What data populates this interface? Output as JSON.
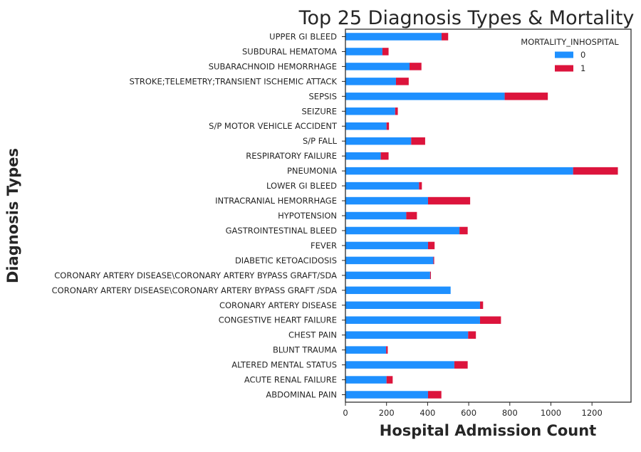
{
  "chart_data": {
    "type": "bar",
    "orientation": "horizontal",
    "stacked": true,
    "title": "Top 25 Diagnosis Types & Mortality",
    "xlabel": "Hospital Admission Count",
    "ylabel": "Diagnosis Types",
    "xlim": [
      0,
      1390
    ],
    "xticks": [
      0,
      200,
      400,
      600,
      800,
      1000,
      1200
    ],
    "grid": false,
    "legend": {
      "title": "MORTALITY_INHOSPITAL",
      "position": "top-right"
    },
    "categories": [
      "UPPER GI BLEED",
      "SUBDURAL HEMATOMA",
      "SUBARACHNOID HEMORRHAGE",
      "STROKE;TELEMETRY;TRANSIENT ISCHEMIC ATTACK",
      "SEPSIS",
      "SEIZURE",
      "S/P MOTOR VEHICLE ACCIDENT",
      "S/P FALL",
      "RESPIRATORY FAILURE",
      "PNEUMONIA",
      "LOWER GI BLEED",
      "INTRACRANIAL HEMORRHAGE",
      "HYPOTENSION",
      "GASTROINTESTINAL BLEED",
      "FEVER",
      "DIABETIC KETOACIDOSIS",
      "CORONARY ARTERY DISEASE\\CORONARY ARTERY BYPASS GRAFT/SDA",
      "CORONARY ARTERY DISEASE\\CORONARY ARTERY BYPASS GRAFT /SDA",
      "CORONARY ARTERY DISEASE",
      "CONGESTIVE HEART FAILURE",
      "CHEST PAIN",
      "BLUNT TRAUMA",
      "ALTERED MENTAL STATUS",
      "ACUTE RENAL FAILURE",
      "ABDOMINAL PAIN"
    ],
    "series": [
      {
        "name": "0",
        "color": "#1e90ff",
        "values": [
          468,
          180,
          312,
          246,
          775,
          242,
          200,
          320,
          172,
          1108,
          358,
          402,
          296,
          555,
          402,
          428,
          412,
          512,
          655,
          655,
          597,
          198,
          530,
          200,
          402
        ]
      },
      {
        "name": "1",
        "color": "#dc143c",
        "values": [
          32,
          30,
          58,
          62,
          210,
          13,
          12,
          68,
          38,
          218,
          14,
          205,
          52,
          40,
          32,
          4,
          4,
          0,
          15,
          102,
          38,
          8,
          65,
          30,
          65
        ]
      }
    ]
  }
}
